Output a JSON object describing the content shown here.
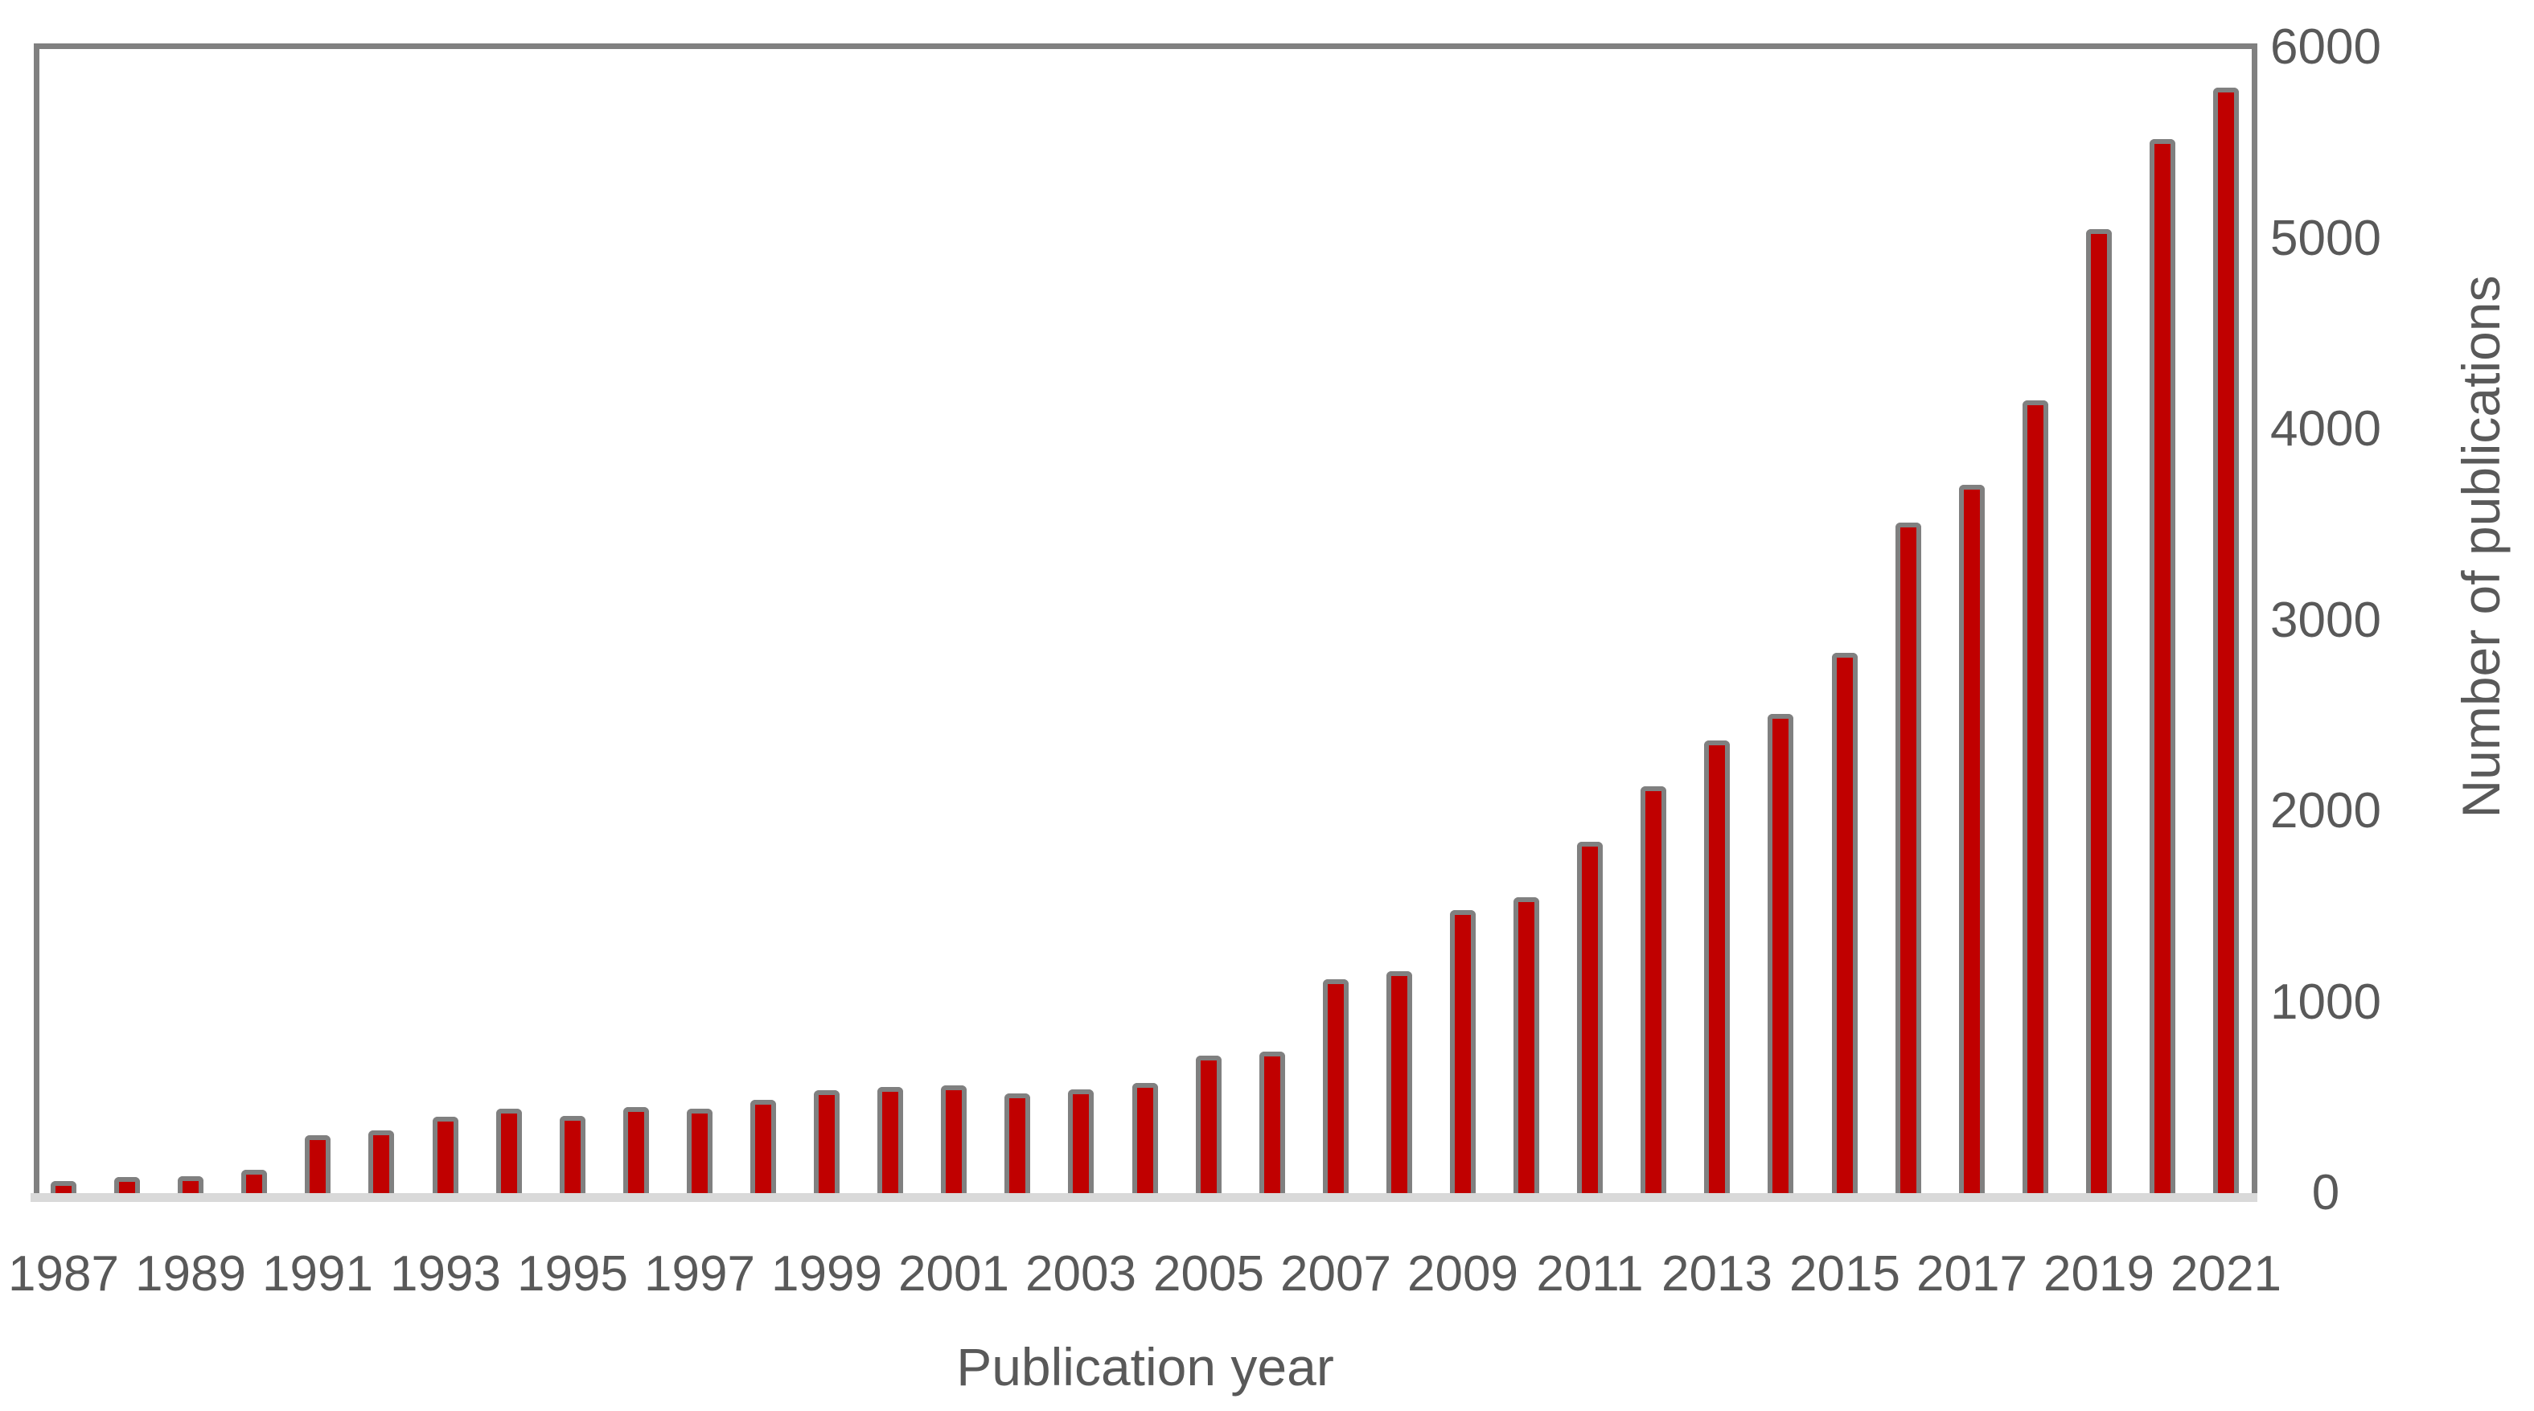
{
  "figure": {
    "background_color": "#ffffff",
    "text_color": "#595959",
    "frame_color": "#808080",
    "axis_band_color": "#d9d9d9"
  },
  "chart_data": {
    "type": "bar",
    "title": "",
    "xlabel": "Publication year",
    "ylabel": "Number of publications",
    "categories": [
      "1987",
      "1988",
      "1989",
      "1990",
      "1991",
      "1992",
      "1993",
      "1994",
      "1995",
      "1996",
      "1997",
      "1998",
      "1999",
      "2000",
      "2001",
      "2002",
      "2003",
      "2004",
      "2005",
      "2006",
      "2007",
      "2008",
      "2009",
      "2010",
      "2011",
      "2012",
      "2013",
      "2014",
      "2015",
      "2016",
      "2017",
      "2018",
      "2019",
      "2020",
      "2021"
    ],
    "values": [
      65,
      85,
      90,
      120,
      305,
      330,
      400,
      440,
      405,
      450,
      440,
      490,
      540,
      555,
      565,
      520,
      545,
      575,
      720,
      740,
      1120,
      1160,
      1480,
      1550,
      1840,
      2130,
      2370,
      2510,
      2830,
      3510,
      3710,
      4150,
      5050,
      5520,
      5790
    ],
    "xtick_labels": [
      "1987",
      "1989",
      "1991",
      "1993",
      "1995",
      "1997",
      "1999",
      "2001",
      "2003",
      "2005",
      "2007",
      "2009",
      "2011",
      "2013",
      "2015",
      "2017",
      "2019",
      "2021"
    ],
    "ytick_labels": [
      "0",
      "1000",
      "2000",
      "3000",
      "4000",
      "5000",
      "6000"
    ],
    "ytick_values": [
      0,
      1000,
      2000,
      3000,
      4000,
      5000,
      6000
    ],
    "ylim": [
      0,
      6000
    ],
    "grid": false,
    "legend_position": "none",
    "bar_fill_color": "#c00000",
    "bar_outline_color": "#808080"
  }
}
